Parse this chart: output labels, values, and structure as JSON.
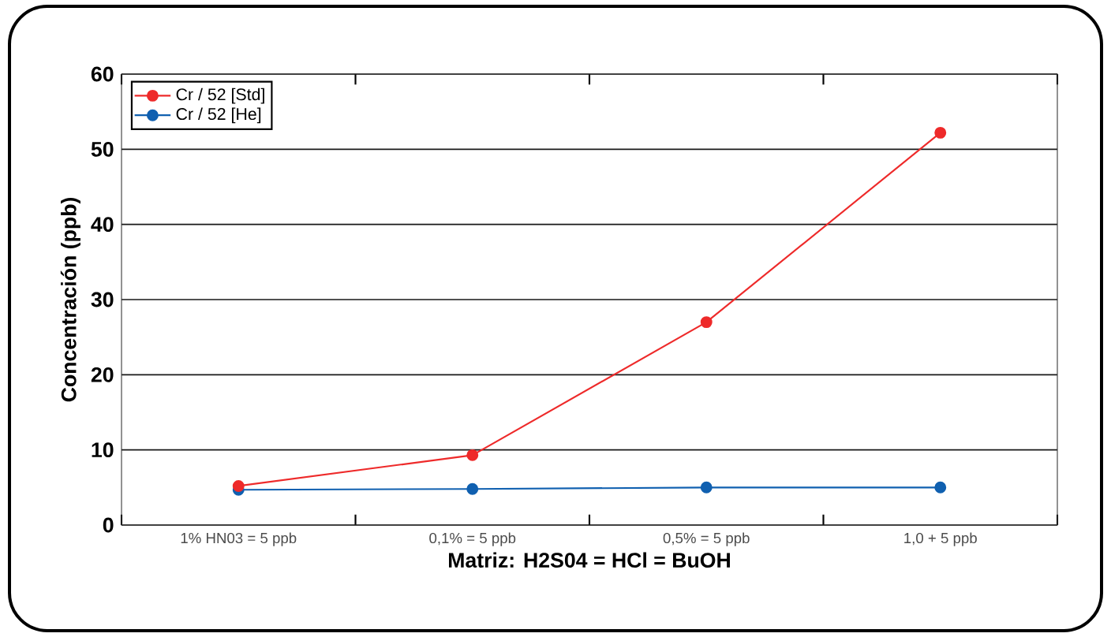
{
  "chart_data": {
    "type": "line",
    "xlabel": "Matriz: H2S04 = HCl = BuOH",
    "ylabel": "Concentración (ppb)",
    "categories": [
      "1% HN03 = 5 ppb",
      "0,1% = 5 ppb",
      "0,5% = 5 ppb",
      "1,0 + 5 ppb"
    ],
    "series": [
      {
        "name": "Cr / 52 [Std]",
        "color": "#ee2a2a",
        "values": [
          5.2,
          9.3,
          27,
          52.2
        ]
      },
      {
        "name": "Cr / 52 [He]",
        "color": "#1060b0",
        "values": [
          4.7,
          4.8,
          5.0,
          5.0
        ]
      }
    ],
    "ylim": [
      0,
      60
    ],
    "yticks": [
      0,
      10,
      20,
      30,
      40,
      50,
      60
    ],
    "grid": "y",
    "legend": "top left",
    "marker": "circle",
    "line_style": "solid"
  }
}
